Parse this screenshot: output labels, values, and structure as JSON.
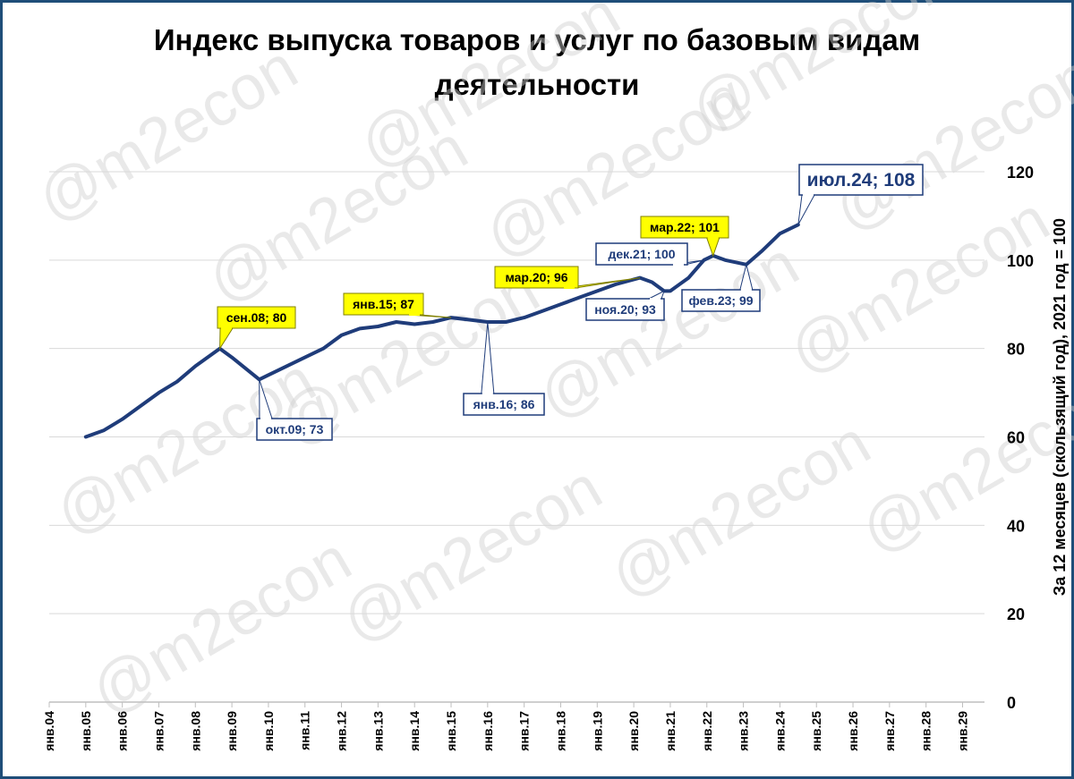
{
  "title_line1": "Индекс выпуска товаров и услуг по базовым видам",
  "title_line2": "деятельности",
  "watermark": "@m2econ",
  "colors": {
    "line": "#1f3c7a",
    "yellow": "#ffff00",
    "frame": "#1f4e79"
  },
  "chart_data": {
    "type": "line",
    "ylabel": "За 12 месяцев (скользящий год), 2021 год =  100",
    "ylim": [
      0,
      120
    ],
    "yticks": [
      0,
      20,
      40,
      60,
      80,
      100,
      120
    ],
    "xticks": [
      "янв.04",
      "янв.05",
      "янв.06",
      "янв.07",
      "янв.08",
      "янв.09",
      "янв.10",
      "янв.11",
      "янв.12",
      "янв.13",
      "янв.14",
      "янв.15",
      "янв.16",
      "янв.17",
      "янв.18",
      "янв.19",
      "янв.20",
      "янв.21",
      "янв.22",
      "янв.23",
      "янв.24",
      "янв.25",
      "янв.26",
      "янв.27",
      "янв.28",
      "янв.29"
    ],
    "xlim": [
      2004.0,
      2029.6
    ],
    "series": [
      {
        "x": [
          2005.0,
          2005.5,
          2006.0,
          2006.5,
          2007.0,
          2007.5,
          2008.0,
          2008.67,
          2009.0,
          2009.75,
          2010.0,
          2010.5,
          2011.0,
          2011.5,
          2012.0,
          2012.5,
          2013.0,
          2013.5,
          2014.0,
          2014.5,
          2015.0,
          2015.5,
          2016.0,
          2016.5,
          2017.0,
          2017.5,
          2018.0,
          2018.5,
          2019.0,
          2019.5,
          2020.17,
          2020.5,
          2020.83,
          2021.0,
          2021.5,
          2021.92,
          2022.17,
          2022.5,
          2023.08,
          2023.5,
          2024.0,
          2024.5
        ],
        "y": [
          60,
          61.5,
          64,
          67,
          70,
          72.5,
          76,
          80,
          78,
          73,
          74,
          76,
          78,
          80,
          83,
          84.5,
          85,
          86,
          85.5,
          86,
          87,
          86.5,
          86,
          86,
          87,
          88.5,
          90,
          91.5,
          93,
          94.5,
          96,
          95,
          93,
          93,
          96,
          100,
          101,
          100,
          99,
          102,
          106,
          108
        ]
      }
    ],
    "annotations": [
      {
        "label": "сен.08; 80",
        "x": 2008.67,
        "y": 80,
        "style": "yellow"
      },
      {
        "label": "окт.09; 73",
        "x": 2009.75,
        "y": 73,
        "style": "blue"
      },
      {
        "label": "янв.15; 87",
        "x": 2015.0,
        "y": 87,
        "style": "yellow"
      },
      {
        "label": "янв.16; 86",
        "x": 2016.0,
        "y": 86,
        "style": "blue"
      },
      {
        "label": "мар.20; 96",
        "x": 2020.17,
        "y": 96,
        "style": "yellow"
      },
      {
        "label": "ноя.20; 93",
        "x": 2020.83,
        "y": 93,
        "style": "blue"
      },
      {
        "label": "дек.21; 100",
        "x": 2021.92,
        "y": 100,
        "style": "blue"
      },
      {
        "label": "мар.22; 101",
        "x": 2022.17,
        "y": 101,
        "style": "yellow"
      },
      {
        "label": "фев.23; 99",
        "x": 2023.08,
        "y": 99,
        "style": "blue"
      },
      {
        "label": "июл.24; 108",
        "x": 2024.5,
        "y": 108,
        "style": "big"
      }
    ]
  }
}
